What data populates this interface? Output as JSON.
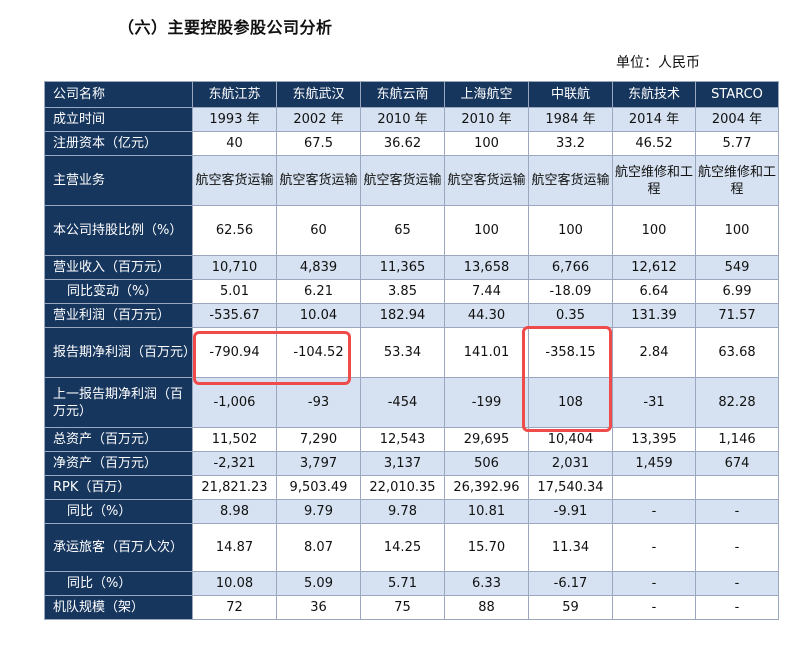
{
  "title": "（六）主要控股参股公司分析",
  "unit": "单位：人民币",
  "table": {
    "header": [
      "公司名称",
      "东航江苏",
      "东航武汉",
      "东航云南",
      "上海航空",
      "中联航",
      "东航技术",
      "STARCO"
    ],
    "rows": [
      {
        "label": "成立时间",
        "cells": [
          "1993 年",
          "2002 年",
          "2010 年",
          "2010 年",
          "1984 年",
          "2014 年",
          "2004 年"
        ]
      },
      {
        "label": "注册资本（亿元）",
        "cells": [
          "40",
          "67.5",
          "36.62",
          "100",
          "33.2",
          "46.52",
          "5.77"
        ]
      },
      {
        "label": "主营业务",
        "cells": [
          "航空客货运输",
          "航空客货运输",
          "航空客货运输",
          "航空客货运输",
          "航空客货运输",
          "航空维修和工程",
          "航空维修和工程"
        ]
      },
      {
        "label": "本公司持股比例（%）",
        "cells": [
          "62.56",
          "60",
          "65",
          "100",
          "100",
          "100",
          "100"
        ]
      },
      {
        "label": "营业收入（百万元）",
        "cells": [
          "10,710",
          "4,839",
          "11,365",
          "13,658",
          "6,766",
          "12,612",
          "549"
        ]
      },
      {
        "label": "同比变动（%）",
        "cells": [
          "5.01",
          "6.21",
          "3.85",
          "7.44",
          "-18.09",
          "6.64",
          "6.99"
        ]
      },
      {
        "label": "营业利润（百万元）",
        "cells": [
          "-535.67",
          "10.04",
          "182.94",
          "44.30",
          "0.35",
          "131.39",
          "71.57"
        ]
      },
      {
        "label": "报告期净利润（百万元）",
        "cells": [
          "-790.94",
          "-104.52",
          "53.34",
          "141.01",
          "-358.15",
          "2.84",
          "63.68"
        ]
      },
      {
        "label": "上一报告期净利润（百万元）",
        "cells": [
          "-1,006",
          "-93",
          "-454",
          "-199",
          "108",
          "-31",
          "82.28"
        ]
      },
      {
        "label": "总资产（百万元）",
        "cells": [
          "11,502",
          "7,290",
          "12,543",
          "29,695",
          "10,404",
          "13,395",
          "1,146"
        ]
      },
      {
        "label": "净资产（百万元）",
        "cells": [
          "-2,321",
          "3,797",
          "3,137",
          "506",
          "2,031",
          "1,459",
          "674"
        ]
      },
      {
        "label": "RPK（百万）",
        "cells": [
          "21,821.23",
          "9,503.49",
          "22,010.35",
          "26,392.96",
          "17,540.34",
          "",
          ""
        ]
      },
      {
        "label": "同比（%）",
        "cells": [
          "8.98",
          "9.79",
          "9.78",
          "10.81",
          "-9.91",
          "-",
          "-"
        ]
      },
      {
        "label": "承运旅客（百万人次）",
        "cells": [
          "14.87",
          "8.07",
          "14.25",
          "15.70",
          "11.34",
          "-",
          "-"
        ]
      },
      {
        "label": "同比（%）",
        "cells": [
          "10.08",
          "5.09",
          "5.71",
          "6.33",
          "-6.17",
          "-",
          "-"
        ]
      },
      {
        "label": "机队规模（架）",
        "cells": [
          "72",
          "36",
          "75",
          "88",
          "59",
          "-",
          "-"
        ]
      }
    ]
  }
}
